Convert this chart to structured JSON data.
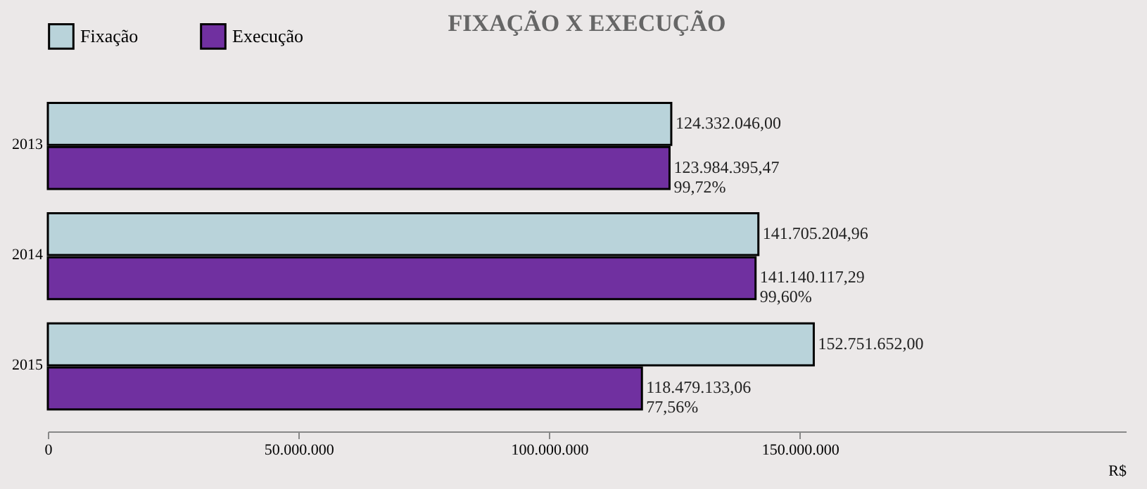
{
  "chart_data": {
    "type": "bar",
    "orientation": "horizontal",
    "title": "FIXAÇÃO X EXECUÇÃO",
    "xlabel": "R$",
    "categories": [
      "2013",
      "2014",
      "2015"
    ],
    "series": [
      {
        "name": "Fixação",
        "color": "#b9d3da",
        "values": [
          124332046.0,
          141705204.96,
          152751652.0
        ],
        "value_labels": [
          "124.332.046,00",
          "141.705.204,96",
          "152.751.652,00"
        ]
      },
      {
        "name": "Execução",
        "color": "#7030a0",
        "values": [
          123984395.47,
          141140117.29,
          118479133.06
        ],
        "value_labels": [
          "123.984.395,47\n99,72%",
          "141.140.117,29\n99,60%",
          "118.479.133,06\n77,56%"
        ]
      }
    ],
    "xlim": [
      0,
      215000000
    ],
    "xticks": [
      {
        "value": 0,
        "label": "0"
      },
      {
        "value": 50000000,
        "label": "50.000.000"
      },
      {
        "value": 100000000,
        "label": "100.000.000"
      },
      {
        "value": 150000000,
        "label": "150.000.000"
      }
    ],
    "grid": false,
    "legend": "top left"
  }
}
